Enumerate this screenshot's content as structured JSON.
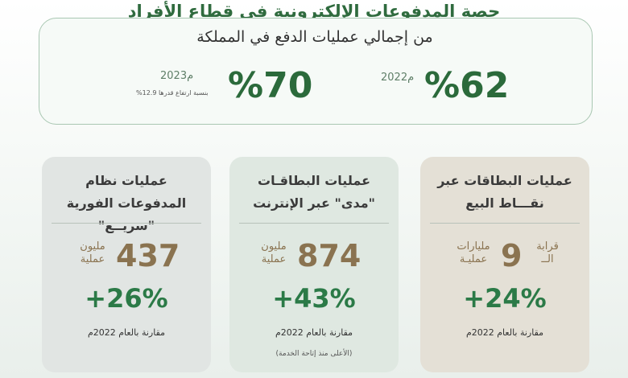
{
  "header": {
    "title": "حصة المدفوعات الإلكترونية في قطاع الأفراد",
    "subtitle": "من إجمالي عمليات الدفع في المملكة"
  },
  "stats": {
    "y2022": {
      "percent": "%62",
      "year": "2022م"
    },
    "y2023": {
      "percent": "%70",
      "year": "2023م",
      "note": "بنسبة ارتفاع قدرها 12.9%"
    }
  },
  "cards": [
    {
      "title": "عمليات البطاقات عبر نقـــاط البيع",
      "prefix": "قرابة الــ",
      "number": "9",
      "unit": "مليارات عمليـة",
      "growth": "+24%",
      "compare": "مقارنة بالعام 2022م"
    },
    {
      "title": "عمليات البطاقـات \"مدى\" عبر الإنترنت",
      "number": "874",
      "unit": "مليون عملية",
      "growth": "+43%",
      "compare": "مقارنة بالعام 2022م",
      "footnote": "(الأعلى منذ إتاحة الخدمة)"
    },
    {
      "title": "عمليات نظام المدفوعات الفورية \"سريــع\"",
      "number": "437",
      "unit": "مليون عملية",
      "growth": "+26%",
      "compare": "مقارنة بالعام 2022م"
    }
  ],
  "colors": {
    "primary_green": "#2b6a3b",
    "accent_brown": "#8a7350",
    "card1_bg": "#e4e0d6",
    "card2_bg": "#dfe8e1",
    "card3_bg": "#e1e5e3"
  }
}
